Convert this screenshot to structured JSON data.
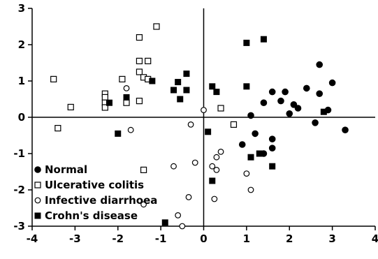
{
  "chart_data": {
    "type": "scatter",
    "title": "",
    "xlabel": "",
    "ylabel": "",
    "xlim": [
      -4,
      4
    ],
    "ylim": [
      -3,
      3
    ],
    "x_ticks": [
      -4,
      -3,
      -2,
      -1,
      0,
      1,
      2,
      3,
      4
    ],
    "y_ticks": [
      3,
      2,
      1,
      0,
      -1,
      -2,
      -3
    ],
    "x_tick_labels": [
      "-4",
      "-3",
      "-2",
      "-1",
      "0",
      "1",
      "2",
      "3",
      "4"
    ],
    "y_tick_labels": [
      "3",
      "2",
      "1",
      "0",
      "-1",
      "-2",
      "-3"
    ],
    "grid": false,
    "zero_lines": true,
    "legend_position": "bottom-left",
    "series": [
      {
        "name": "Normal",
        "marker": "filled-circle",
        "points": [
          [
            2.7,
            1.45
          ],
          [
            1.9,
            0.7
          ],
          [
            2.1,
            0.35
          ],
          [
            1.6,
            0.7
          ],
          [
            2.4,
            0.8
          ],
          [
            3.0,
            0.95
          ],
          [
            2.7,
            0.65
          ],
          [
            1.8,
            0.45
          ],
          [
            1.4,
            0.4
          ],
          [
            2.2,
            0.25
          ],
          [
            2.0,
            0.1
          ],
          [
            2.9,
            0.2
          ],
          [
            2.6,
            -0.15
          ],
          [
            3.3,
            -0.35
          ],
          [
            1.1,
            0.05
          ],
          [
            1.2,
            -0.45
          ],
          [
            1.6,
            -0.6
          ],
          [
            1.4,
            -1.0
          ],
          [
            1.6,
            -0.85
          ],
          [
            0.9,
            -0.75
          ]
        ]
      },
      {
        "name": "Ulcerative colitis",
        "marker": "open-square",
        "points": [
          [
            -1.1,
            2.5
          ],
          [
            -1.5,
            2.2
          ],
          [
            -1.5,
            1.55
          ],
          [
            -1.3,
            1.55
          ],
          [
            -1.5,
            1.25
          ],
          [
            -1.4,
            1.1
          ],
          [
            -1.3,
            1.05
          ],
          [
            -1.9,
            1.05
          ],
          [
            -3.5,
            1.05
          ],
          [
            -3.1,
            0.28
          ],
          [
            -2.3,
            0.65
          ],
          [
            -2.3,
            0.55
          ],
          [
            -2.3,
            0.4
          ],
          [
            -2.3,
            0.27
          ],
          [
            -1.8,
            0.4
          ],
          [
            -1.5,
            0.45
          ],
          [
            -3.4,
            -0.3
          ],
          [
            -1.4,
            -1.45
          ],
          [
            0.4,
            0.25
          ],
          [
            0.7,
            -0.2
          ]
        ]
      },
      {
        "name": "Infective diarrhoea",
        "marker": "open-circle",
        "points": [
          [
            -1.8,
            0.8
          ],
          [
            -1.7,
            -0.35
          ],
          [
            -0.3,
            -0.2
          ],
          [
            0.0,
            0.2
          ],
          [
            0.4,
            -0.95
          ],
          [
            0.3,
            -1.1
          ],
          [
            -0.2,
            -1.25
          ],
          [
            -0.7,
            -1.35
          ],
          [
            0.3,
            -1.45
          ],
          [
            0.2,
            -1.35
          ],
          [
            1.0,
            -1.55
          ],
          [
            1.1,
            -2.0
          ],
          [
            -1.4,
            -2.4
          ],
          [
            0.25,
            -2.25
          ],
          [
            -0.35,
            -2.2
          ],
          [
            -0.6,
            -2.7
          ],
          [
            -0.5,
            -3.0
          ]
        ]
      },
      {
        "name": "Crohn's disease",
        "marker": "filled-square",
        "points": [
          [
            1.4,
            2.15
          ],
          [
            1.0,
            2.05
          ],
          [
            -1.2,
            1.0
          ],
          [
            -0.4,
            1.2
          ],
          [
            -0.6,
            0.97
          ],
          [
            -0.7,
            0.75
          ],
          [
            -0.4,
            0.75
          ],
          [
            0.2,
            0.85
          ],
          [
            0.3,
            0.7
          ],
          [
            -1.8,
            0.55
          ],
          [
            -2.2,
            0.4
          ],
          [
            -0.55,
            0.5
          ],
          [
            1.0,
            0.85
          ],
          [
            2.8,
            0.15
          ],
          [
            -2.0,
            -0.45
          ],
          [
            0.1,
            -0.4
          ],
          [
            1.3,
            -1.0
          ],
          [
            1.1,
            -1.1
          ],
          [
            1.6,
            -1.35
          ],
          [
            0.2,
            -1.75
          ],
          [
            -0.9,
            -2.9
          ]
        ]
      }
    ]
  }
}
